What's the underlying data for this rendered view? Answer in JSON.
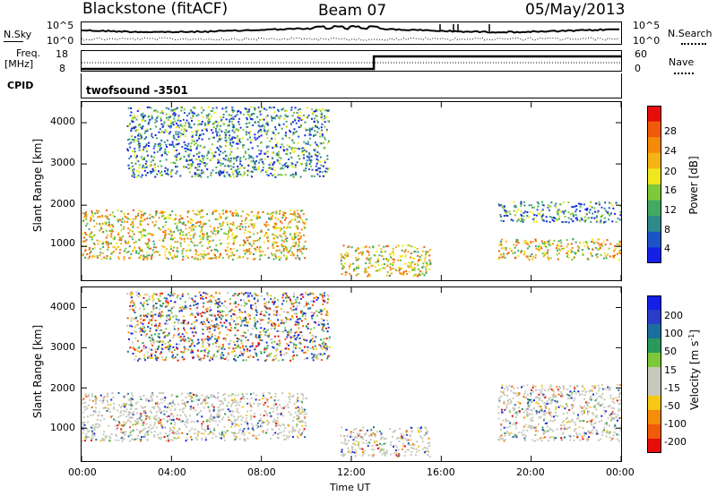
{
  "header": {
    "station": "Blackstone (fitACF)",
    "beam": "Beam 07",
    "date": "05/May/2013"
  },
  "strip_panels": {
    "nsky_label": "N.Sky",
    "nsearch_label": "N.Search",
    "noise_ticks_left": [
      "10^5",
      "10^0"
    ],
    "noise_ticks_right": [
      "10^5",
      "10^0"
    ],
    "freq_label": "Freq.",
    "freq_unit": "[MHz]",
    "freq_ticks": [
      "18",
      "8"
    ],
    "nave_label": "Nave",
    "nave_ticks": [
      "60",
      "0"
    ],
    "cpid_label": "CPID",
    "cpid_value": "twofsound  -3501"
  },
  "time_axis": {
    "label": "Time UT",
    "ticks": [
      "00:00",
      "04:00",
      "08:00",
      "12:00",
      "16:00",
      "20:00",
      "00:00"
    ]
  },
  "colors": {
    "power": [
      "#1420e8",
      "#1c54c8",
      "#2d8a8a",
      "#42a862",
      "#7ec83a",
      "#f0e81c",
      "#f5b414",
      "#f58a0a",
      "#f05a0a",
      "#e80c0c"
    ],
    "velocity": [
      "#1420e8",
      "#2b3cc8",
      "#1c6e9e",
      "#2a9a5a",
      "#7cc83a",
      "#c8c8bc",
      "#c8c8bc",
      "#f5c814",
      "#f58c0a",
      "#f05a0a",
      "#e80c0c"
    ]
  },
  "chart_data": [
    {
      "type": "heatmap",
      "title": "",
      "xlabel": "Time UT",
      "ylabel": "Slant Range [km]",
      "xlim": [
        "00:00",
        "24:00"
      ],
      "ylim": [
        180,
        4500
      ],
      "y_ticks": [
        "1000",
        "2000",
        "3000",
        "4000"
      ],
      "colorbar": {
        "label": "Power [dB]",
        "ticks": [
          "4",
          "8",
          "12",
          "16",
          "20",
          "24",
          "28"
        ],
        "range": [
          0,
          30
        ]
      },
      "echo_regions": [
        {
          "t_start": 0.0,
          "t_end": 10.0,
          "range_km": [
            700,
            1900
          ],
          "level": "strong"
        },
        {
          "t_start": 2.0,
          "t_end": 11.0,
          "range_km": [
            2700,
            4400
          ],
          "level": "moderate"
        },
        {
          "t_start": 11.5,
          "t_end": 15.5,
          "range_km": [
            300,
            1050
          ],
          "level": "strong"
        },
        {
          "t_start": 18.5,
          "t_end": 24.0,
          "range_km": [
            700,
            1200
          ],
          "level": "strong"
        },
        {
          "t_start": 18.5,
          "t_end": 24.0,
          "range_km": [
            1600,
            2100
          ],
          "level": "moderate"
        }
      ]
    },
    {
      "type": "heatmap",
      "title": "",
      "xlabel": "Time UT",
      "ylabel": "Slant Range [km]",
      "xlim": [
        "00:00",
        "24:00"
      ],
      "ylim": [
        180,
        4500
      ],
      "y_ticks": [
        "1000",
        "2000",
        "3000",
        "4000"
      ],
      "colorbar": {
        "label": "Velocity [m s-1]",
        "label_main": "Velocity [m s",
        "label_sup": "-1",
        "label_end": "]",
        "ticks": [
          "200",
          "100",
          "50",
          "15",
          "-15",
          "-50",
          "-100",
          "-200"
        ],
        "range": [
          -250,
          250
        ]
      },
      "echo_regions": [
        {
          "t_start": 0.0,
          "t_end": 10.0,
          "range_km": [
            700,
            1900
          ],
          "level": "ground-scatter"
        },
        {
          "t_start": 2.0,
          "t_end": 11.0,
          "range_km": [
            2700,
            4400
          ],
          "level": "mixed"
        },
        {
          "t_start": 11.5,
          "t_end": 15.5,
          "range_km": [
            300,
            1050
          ],
          "level": "ground-scatter"
        },
        {
          "t_start": 18.5,
          "t_end": 24.0,
          "range_km": [
            700,
            2100
          ],
          "level": "ground-scatter"
        }
      ]
    }
  ]
}
